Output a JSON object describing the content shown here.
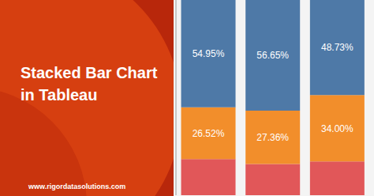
{
  "chart_data": {
    "type": "bar",
    "title": "Stacked Bar Chart in Tableau",
    "annotations": [
      "www.rigordatasolutions.com"
    ],
    "stacked": true,
    "categories": [
      null,
      null,
      null
    ],
    "ylim": [
      0,
      100
    ],
    "tick_labels": false,
    "series": [
      {
        "color": "#e15759",
        "values": [
          18.53,
          15.99,
          17.27
        ]
      },
      {
        "color": "#f28e2b",
        "values": [
          26.52,
          27.36,
          34.0
        ],
        "data_labels": true,
        "value_labels": [
          "26.52%",
          "27.36%",
          "34.00%"
        ]
      },
      {
        "color": "#4e79a7",
        "values": [
          54.95,
          56.65,
          48.73
        ],
        "data_labels": true,
        "value_labels": [
          "54.95%",
          "56.65%",
          "48.73%"
        ]
      }
    ]
  }
}
